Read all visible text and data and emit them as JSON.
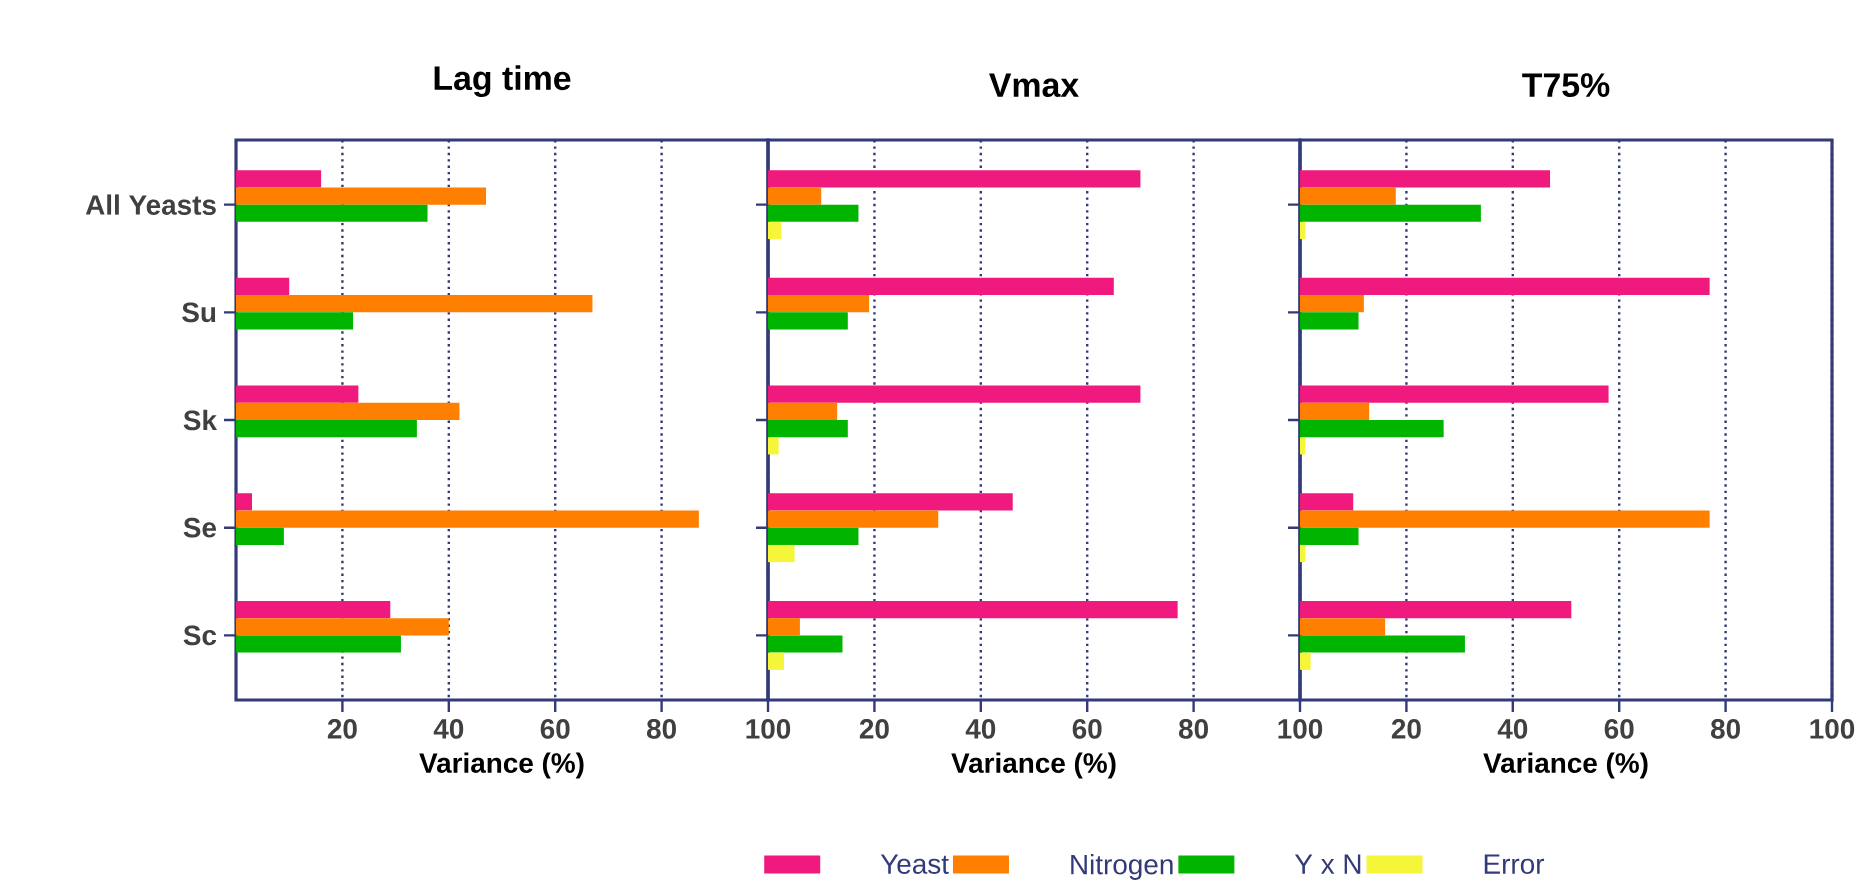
{
  "chart_data": [
    {
      "type": "bar",
      "orientation": "horizontal",
      "title": "Lag time",
      "xlabel": "Variance (%)",
      "categories": [
        "All Yeasts",
        "Su",
        "Sk",
        "Se",
        "Sc"
      ],
      "xlim": [
        0,
        100
      ],
      "xticks": [
        20,
        40,
        60,
        80,
        100
      ],
      "grid": "x",
      "legend": "bottom",
      "series": [
        {
          "name": "Yeast",
          "color": "#f0197d",
          "values": [
            16,
            10,
            23,
            3,
            29
          ]
        },
        {
          "name": "Nitrogen",
          "color": "#ff7f00",
          "values": [
            47,
            67,
            42,
            87,
            40
          ]
        },
        {
          "name": "Y x N",
          "color": "#00b400",
          "values": [
            36,
            22,
            34,
            9,
            31
          ]
        },
        {
          "name": "Error",
          "color": "#f5f53a",
          "values": [
            null,
            null,
            null,
            null,
            null
          ]
        }
      ]
    },
    {
      "type": "bar",
      "orientation": "horizontal",
      "title": "Vmax",
      "xlabel": "Variance (%)",
      "categories": [
        null,
        null,
        null,
        null,
        null
      ],
      "xlim": [
        0,
        100
      ],
      "xticks": [
        20,
        40,
        60,
        80,
        100
      ],
      "grid": "x",
      "tick_labels": "x",
      "series": [
        {
          "color": "#f0197d",
          "values": [
            70,
            65,
            70,
            46,
            77
          ]
        },
        {
          "color": "#ff7f00",
          "values": [
            10,
            19,
            13,
            32,
            6
          ]
        },
        {
          "color": "#00b400",
          "values": [
            17,
            15,
            15,
            17,
            14
          ]
        },
        {
          "color": "#f5f53a",
          "values": [
            2.5,
            null,
            2,
            5,
            3
          ]
        }
      ]
    },
    {
      "type": "bar",
      "orientation": "horizontal",
      "title": "T75%",
      "xlabel": "Variance (%)",
      "categories": [
        null,
        null,
        null,
        null,
        null
      ],
      "xlim": [
        0,
        100
      ],
      "xticks": [
        20,
        40,
        60,
        80,
        100
      ],
      "grid": "x",
      "tick_labels": "x",
      "series": [
        {
          "color": "#f0197d",
          "values": [
            47,
            77,
            58,
            10,
            51
          ]
        },
        {
          "color": "#ff7f00",
          "values": [
            18,
            12,
            13,
            77,
            16
          ]
        },
        {
          "color": "#00b400",
          "values": [
            34,
            11,
            27,
            11,
            31
          ]
        },
        {
          "color": "#f5f53a",
          "values": [
            1,
            null,
            1,
            1,
            2
          ]
        }
      ]
    }
  ]
}
